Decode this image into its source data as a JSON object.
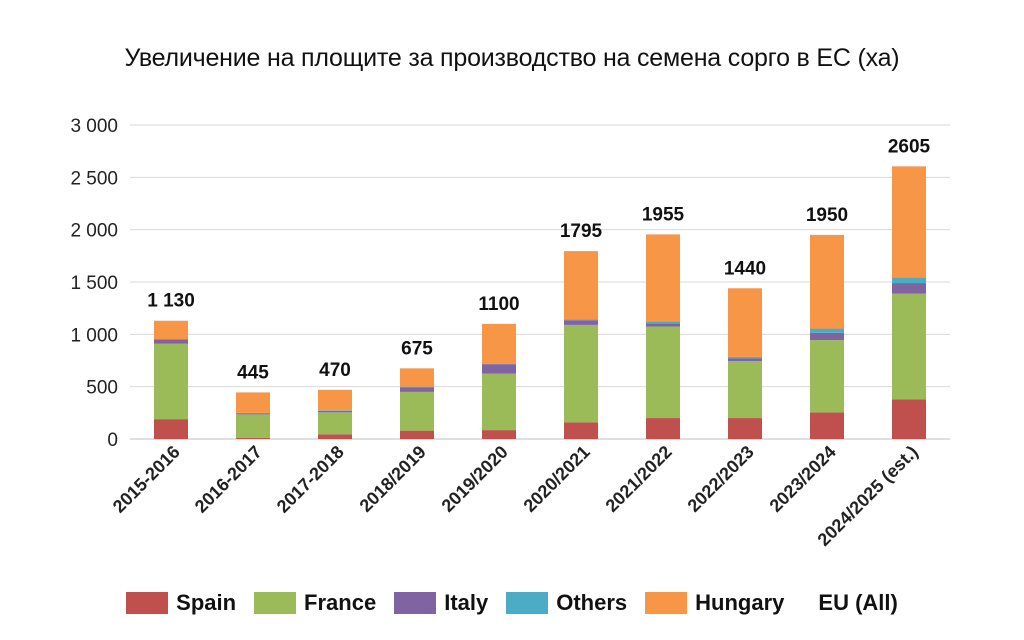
{
  "chart_data": {
    "type": "bar",
    "stacked": true,
    "title": "Увеличение на площите за производство на семена сорго в ЕС (ха)",
    "categories": [
      "2015-2016",
      "2016-2017",
      "2017-2018",
      "2018/2019",
      "2019/2020",
      "2020/2021",
      "2021/2022",
      "2022/2023",
      "2023/2024",
      "2024/2025 (est.)"
    ],
    "series": [
      {
        "name": "Spain",
        "color": "#c0504d",
        "values": [
          190,
          10,
          45,
          80,
          85,
          160,
          200,
          200,
          255,
          380
        ]
      },
      {
        "name": "France",
        "color": "#9bbb59",
        "values": [
          720,
          225,
          210,
          370,
          540,
          930,
          875,
          545,
          690,
          1010
        ]
      },
      {
        "name": "Italy",
        "color": "#8064a2",
        "values": [
          40,
          10,
          15,
          45,
          90,
          45,
          30,
          25,
          70,
          100
        ]
      },
      {
        "name": "Others",
        "color": "#4bacc6",
        "values": [
          5,
          5,
          5,
          5,
          5,
          10,
          20,
          15,
          40,
          55
        ]
      },
      {
        "name": "Hungary",
        "color": "#f79646",
        "values": [
          175,
          195,
          195,
          175,
          380,
          650,
          830,
          655,
          895,
          1060
        ]
      }
    ],
    "totals_label": "EU (All)",
    "totals": [
      "1 130",
      "445",
      "470",
      "675",
      "1100",
      "1795",
      "1955",
      "1440",
      "1950",
      "2605"
    ],
    "total_values": [
      1130,
      445,
      470,
      675,
      1100,
      1795,
      1955,
      1440,
      1950,
      2605
    ],
    "ylim": [
      0,
      3000
    ],
    "yticks": [
      0,
      500,
      1000,
      1500,
      2000,
      2500,
      3000
    ],
    "ytick_labels": [
      "0",
      "500",
      "1 000",
      "1 500",
      "2 000",
      "2 500",
      "3 000"
    ],
    "grid": true,
    "legend_position": "bottom"
  }
}
